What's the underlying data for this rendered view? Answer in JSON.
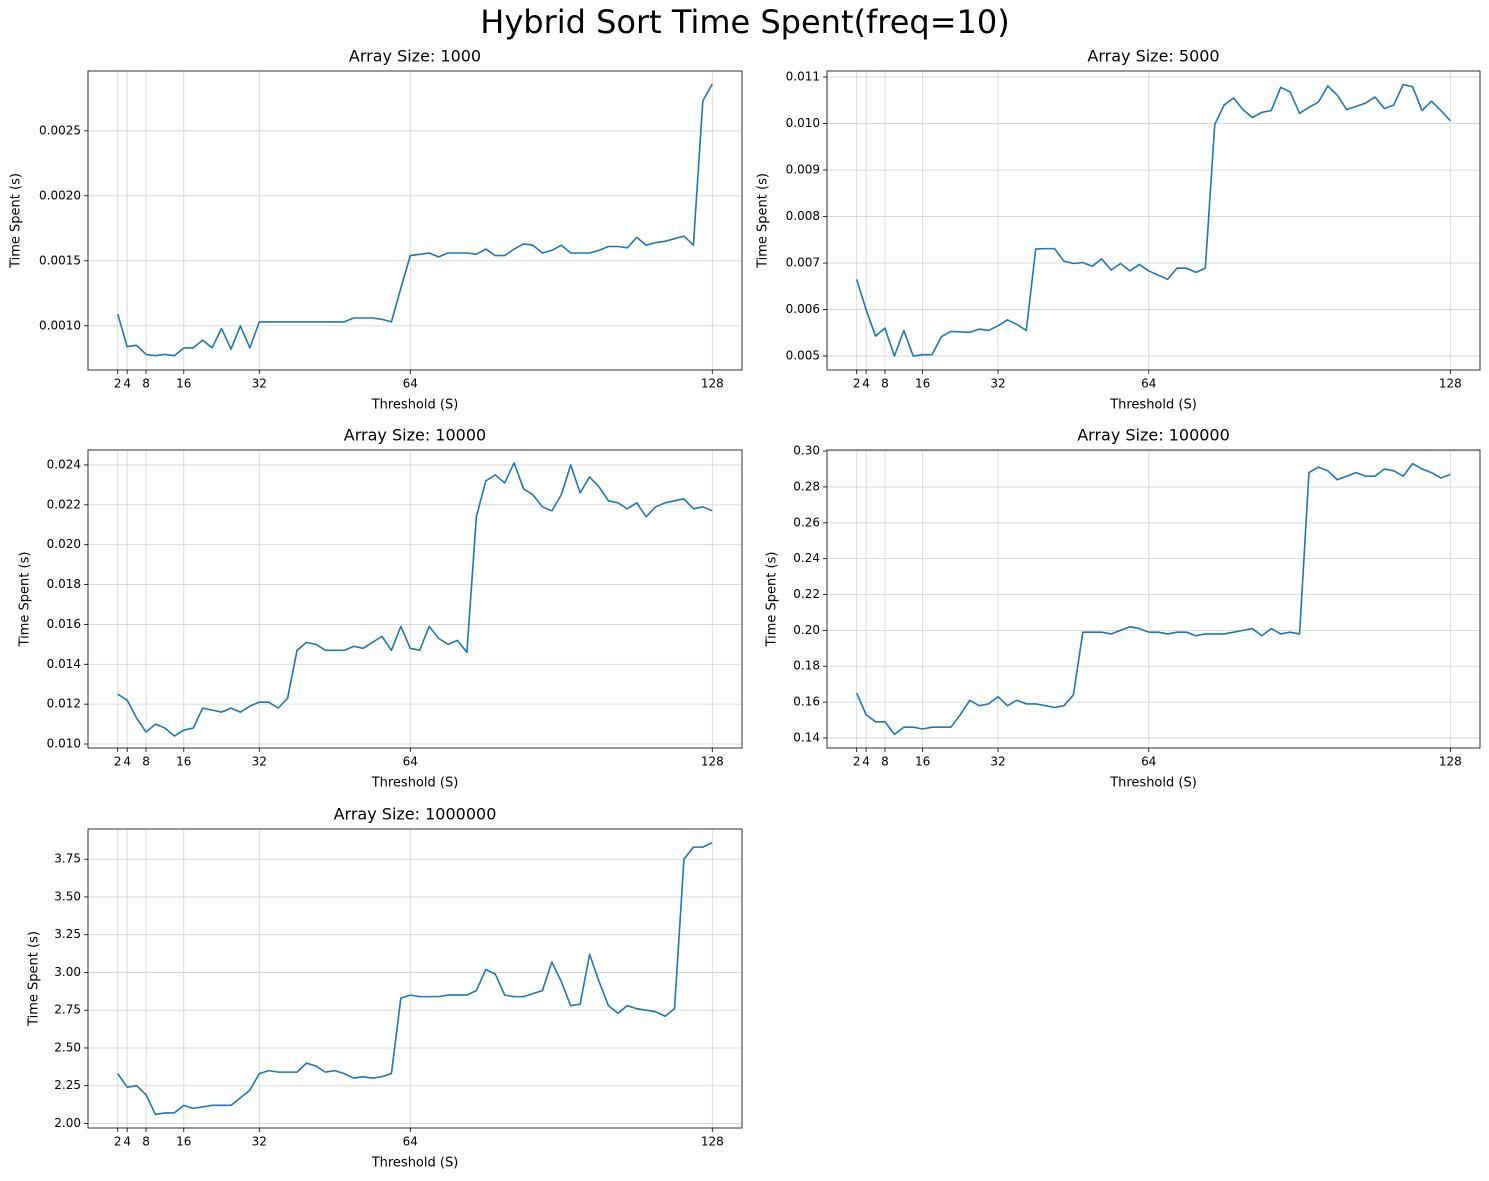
{
  "title": "Hybrid Sort Time Spent(freq=10)",
  "chart_data": [
    {
      "type": "line",
      "title": "Array Size: 1000",
      "x_label": "Threshold (S)",
      "y_label": "Time Spent (s)",
      "color": "#1f77b4",
      "grid": true,
      "x": [
        2,
        4,
        6,
        8,
        10,
        12,
        14,
        16,
        18,
        20,
        22,
        24,
        26,
        28,
        30,
        32,
        34,
        36,
        38,
        40,
        42,
        44,
        46,
        48,
        50,
        52,
        54,
        56,
        58,
        60,
        62,
        64,
        66,
        68,
        70,
        72,
        74,
        76,
        78,
        80,
        82,
        84,
        86,
        88,
        90,
        92,
        94,
        96,
        98,
        100,
        102,
        104,
        106,
        108,
        110,
        112,
        114,
        116,
        118,
        120,
        122,
        124,
        126,
        128
      ],
      "values": [
        0.00109,
        0.00084,
        0.00085,
        0.00078,
        0.00077,
        0.00078,
        0.00077,
        0.00083,
        0.00083,
        0.00089,
        0.00083,
        0.00098,
        0.00082,
        0.001,
        0.00083,
        0.00103,
        0.00103,
        0.00103,
        0.00103,
        0.00103,
        0.00103,
        0.00103,
        0.00103,
        0.00103,
        0.00103,
        0.00106,
        0.00106,
        0.00106,
        0.00105,
        0.00103,
        0.00129,
        0.00154,
        0.00155,
        0.00156,
        0.00153,
        0.00156,
        0.00156,
        0.00156,
        0.00155,
        0.00159,
        0.00154,
        0.00154,
        0.00159,
        0.00163,
        0.00162,
        0.00156,
        0.00158,
        0.00162,
        0.00156,
        0.00156,
        0.00156,
        0.00158,
        0.00161,
        0.00161,
        0.0016,
        0.00168,
        0.00162,
        0.00164,
        0.00165,
        0.00167,
        0.00169,
        0.00162,
        0.00273,
        0.00286
      ],
      "xlim": [
        -4.3,
        134.3
      ],
      "xticks": [
        2,
        4,
        8,
        16,
        32,
        64,
        128
      ],
      "ylim": [
        0.00066,
        0.00296
      ],
      "yticks": [
        {
          "value": 0.001,
          "label": "0.0010"
        },
        0.0015,
        {
          "value": 0.002,
          "label": "0.0020"
        },
        0.0025
      ]
    },
    {
      "type": "line",
      "title": "Array Size: 5000",
      "x_label": "Threshold (S)",
      "y_label": "Time Spent (s)",
      "color": "#1f77b4",
      "grid": true,
      "x": [
        2,
        4,
        6,
        8,
        10,
        12,
        14,
        16,
        18,
        20,
        22,
        24,
        26,
        28,
        30,
        32,
        34,
        36,
        38,
        40,
        42,
        44,
        46,
        48,
        50,
        52,
        54,
        56,
        58,
        60,
        62,
        64,
        66,
        68,
        70,
        72,
        74,
        76,
        78,
        80,
        82,
        84,
        86,
        88,
        90,
        92,
        94,
        96,
        98,
        100,
        102,
        104,
        106,
        108,
        110,
        112,
        114,
        116,
        118,
        120,
        122,
        124,
        126,
        128
      ],
      "values": [
        0.00665,
        0.006,
        0.00543,
        0.0056,
        0.005,
        0.00555,
        0.005,
        0.00503,
        0.00503,
        0.00542,
        0.00553,
        0.00552,
        0.00551,
        0.00558,
        0.00555,
        0.00565,
        0.00578,
        0.00568,
        0.00555,
        0.0073,
        0.00731,
        0.00731,
        0.00704,
        0.00699,
        0.00701,
        0.00693,
        0.00709,
        0.00685,
        0.00699,
        0.00683,
        0.00697,
        0.00683,
        0.00674,
        0.00665,
        0.00689,
        0.00689,
        0.0068,
        0.00689,
        0.00998,
        0.0104,
        0.01055,
        0.0103,
        0.01013,
        0.01024,
        0.01028,
        0.01078,
        0.01068,
        0.01022,
        0.01035,
        0.01046,
        0.01081,
        0.01061,
        0.0103,
        0.01037,
        0.01044,
        0.01057,
        0.01032,
        0.0104,
        0.01084,
        0.01079,
        0.01028,
        0.01048,
        0.01028,
        0.01006
      ],
      "xlim": [
        -4.3,
        134.3
      ],
      "xticks": [
        2,
        4,
        8,
        16,
        32,
        64,
        128
      ],
      "ylim": [
        0.0047,
        0.01113
      ],
      "yticks": [
        0.005,
        0.006,
        0.007,
        0.008,
        0.009,
        {
          "value": 0.01,
          "label": "0.010"
        },
        0.011
      ]
    },
    {
      "type": "line",
      "title": "Array Size: 10000",
      "x_label": "Threshold (S)",
      "y_label": "Time Spent (s)",
      "color": "#1f77b4",
      "grid": true,
      "x": [
        2,
        4,
        6,
        8,
        10,
        12,
        14,
        16,
        18,
        20,
        22,
        24,
        26,
        28,
        30,
        32,
        34,
        36,
        38,
        40,
        42,
        44,
        46,
        48,
        50,
        52,
        54,
        56,
        58,
        60,
        62,
        64,
        66,
        68,
        70,
        72,
        74,
        76,
        78,
        80,
        82,
        84,
        86,
        88,
        90,
        92,
        94,
        96,
        98,
        100,
        102,
        104,
        106,
        108,
        110,
        112,
        114,
        116,
        118,
        120,
        122,
        124,
        126,
        128
      ],
      "values": [
        0.0125,
        0.0122,
        0.0113,
        0.0106,
        0.011,
        0.0108,
        0.0104,
        0.0107,
        0.0108,
        0.0118,
        0.0117,
        0.0116,
        0.0118,
        0.0116,
        0.0119,
        0.0121,
        0.0121,
        0.0118,
        0.0123,
        0.0147,
        0.0151,
        0.015,
        0.0147,
        0.0147,
        0.0147,
        0.0149,
        0.0148,
        0.0151,
        0.0154,
        0.0147,
        0.0159,
        0.0148,
        0.0147,
        0.0159,
        0.0153,
        0.015,
        0.0152,
        0.0146,
        0.0214,
        0.0232,
        0.0235,
        0.0231,
        0.0241,
        0.0228,
        0.0225,
        0.0219,
        0.0217,
        0.0225,
        0.024,
        0.0226,
        0.0234,
        0.0229,
        0.0222,
        0.0221,
        0.0218,
        0.0221,
        0.0214,
        0.0219,
        0.0221,
        0.0222,
        0.0223,
        0.0218,
        0.0219,
        0.0217
      ],
      "xlim": [
        -4.3,
        134.3
      ],
      "xticks": [
        2,
        4,
        8,
        16,
        32,
        64,
        128
      ],
      "ylim": [
        0.0098,
        0.02475
      ],
      "yticks": [
        {
          "value": 0.01,
          "label": "0.010"
        },
        0.012,
        0.014,
        0.016,
        0.018,
        {
          "value": 0.02,
          "label": "0.020"
        },
        0.022,
        0.024
      ]
    },
    {
      "type": "line",
      "title": "Array Size: 100000",
      "x_label": "Threshold (S)",
      "y_label": "Time Spent (s)",
      "color": "#1f77b4",
      "grid": true,
      "x": [
        2,
        4,
        6,
        8,
        10,
        12,
        14,
        16,
        18,
        20,
        22,
        24,
        26,
        28,
        30,
        32,
        34,
        36,
        38,
        40,
        42,
        44,
        46,
        48,
        50,
        52,
        54,
        56,
        58,
        60,
        62,
        64,
        66,
        68,
        70,
        72,
        74,
        76,
        78,
        80,
        82,
        84,
        86,
        88,
        90,
        92,
        94,
        96,
        98,
        100,
        102,
        104,
        106,
        108,
        110,
        112,
        114,
        116,
        118,
        120,
        122,
        124,
        126,
        128
      ],
      "values": [
        0.165,
        0.153,
        0.149,
        0.149,
        0.142,
        0.146,
        0.146,
        0.145,
        0.146,
        0.146,
        0.146,
        0.153,
        0.161,
        0.158,
        0.159,
        0.163,
        0.158,
        0.161,
        0.159,
        0.159,
        0.158,
        0.157,
        0.158,
        0.164,
        0.199,
        0.199,
        0.199,
        0.198,
        0.2,
        0.202,
        0.201,
        0.199,
        0.199,
        0.198,
        0.199,
        0.199,
        0.197,
        0.198,
        0.198,
        0.198,
        0.199,
        0.2,
        0.201,
        0.197,
        0.201,
        0.198,
        0.199,
        0.198,
        0.288,
        0.291,
        0.289,
        0.284,
        0.286,
        0.288,
        0.286,
        0.286,
        0.29,
        0.289,
        0.286,
        0.293,
        0.29,
        0.288,
        0.285,
        0.287
      ],
      "xlim": [
        -4.3,
        134.3
      ],
      "xticks": [
        2,
        4,
        8,
        16,
        32,
        64,
        128
      ],
      "ylim": [
        0.1344,
        0.3006
      ],
      "yticks": [
        0.14,
        0.16,
        0.18,
        {
          "value": 0.2,
          "label": "0.20"
        },
        0.22,
        0.24,
        0.26,
        0.28,
        {
          "value": 0.3,
          "label": "0.30"
        }
      ]
    },
    {
      "type": "line",
      "title": "Array Size: 1000000",
      "x_label": "Threshold (S)",
      "y_label": "Time Spent (s)",
      "color": "#1f77b4",
      "grid": true,
      "x": [
        2,
        4,
        6,
        8,
        10,
        12,
        14,
        16,
        18,
        20,
        22,
        24,
        26,
        28,
        30,
        32,
        34,
        36,
        38,
        40,
        42,
        44,
        46,
        48,
        50,
        52,
        54,
        56,
        58,
        60,
        62,
        64,
        66,
        68,
        70,
        72,
        74,
        76,
        78,
        80,
        82,
        84,
        86,
        88,
        90,
        92,
        94,
        96,
        98,
        100,
        102,
        104,
        106,
        108,
        110,
        112,
        114,
        116,
        118,
        120,
        122,
        124,
        126,
        128
      ],
      "values": [
        2.33,
        2.24,
        2.25,
        2.19,
        2.06,
        2.07,
        2.07,
        2.12,
        2.1,
        2.11,
        2.12,
        2.12,
        2.12,
        2.17,
        2.22,
        2.33,
        2.35,
        2.34,
        2.34,
        2.34,
        2.4,
        2.38,
        2.34,
        2.35,
        2.33,
        2.3,
        2.31,
        2.3,
        2.31,
        2.33,
        2.83,
        2.85,
        2.84,
        2.84,
        2.84,
        2.85,
        2.85,
        2.85,
        2.88,
        3.02,
        2.99,
        2.85,
        2.84,
        2.84,
        2.86,
        2.88,
        3.07,
        2.94,
        2.78,
        2.79,
        3.12,
        2.94,
        2.78,
        2.73,
        2.78,
        2.76,
        2.75,
        2.74,
        2.71,
        2.76,
        3.75,
        3.83,
        3.83,
        3.86
      ],
      "xlim": [
        -4.3,
        134.3
      ],
      "xticks": [
        2,
        4,
        8,
        16,
        32,
        64,
        128
      ],
      "ylim": [
        1.97,
        3.95
      ],
      "yticks": [
        {
          "value": 2,
          "label": "2.00"
        },
        2.25,
        {
          "value": 2.5,
          "label": "2.50"
        },
        2.75,
        {
          "value": 3,
          "label": "3.00"
        },
        3.25,
        {
          "value": 3.5,
          "label": "3.50"
        },
        3.75
      ]
    }
  ]
}
